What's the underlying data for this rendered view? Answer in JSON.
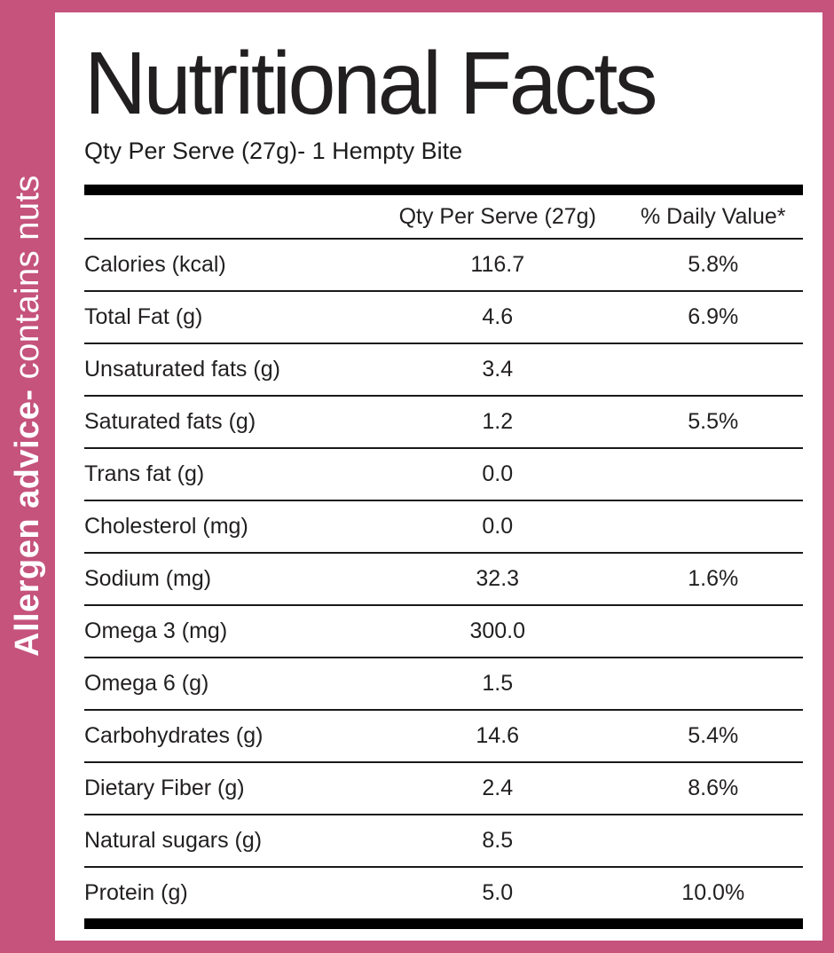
{
  "colors": {
    "accent_pink": "#c5537c",
    "text_dark": "#221f20",
    "bar_black": "#000000",
    "banner_text": "#ffffff"
  },
  "allergen_banner": {
    "bold_text": "Allergen advice-",
    "regular_text": " contains nuts"
  },
  "header": {
    "title": "Nutritional Facts",
    "subtitle": "Qty Per Serve (27g)- 1 Hempty Bite"
  },
  "table": {
    "columns": {
      "qty_header": "Qty Per Serve (27g)",
      "dv_header": "% Daily Value*"
    },
    "rows": [
      {
        "label": "Calories (kcal)",
        "qty": "116.7",
        "dv": "5.8%"
      },
      {
        "label": "Total Fat (g)",
        "qty": "4.6",
        "dv": "6.9%"
      },
      {
        "label": "Unsaturated fats (g)",
        "qty": "3.4",
        "dv": ""
      },
      {
        "label": "Saturated fats (g)",
        "qty": "1.2",
        "dv": "5.5%"
      },
      {
        "label": "Trans fat (g)",
        "qty": "0.0",
        "dv": ""
      },
      {
        "label": "Cholesterol (mg)",
        "qty": "0.0",
        "dv": ""
      },
      {
        "label": "Sodium (mg)",
        "qty": "32.3",
        "dv": "1.6%"
      },
      {
        "label": "Omega 3 (mg)",
        "qty": "300.0",
        "dv": ""
      },
      {
        "label": "Omega 6 (g)",
        "qty": "1.5",
        "dv": ""
      },
      {
        "label": "Carbohydrates (g)",
        "qty": "14.6",
        "dv": "5.4%"
      },
      {
        "label": "Dietary Fiber (g)",
        "qty": "2.4",
        "dv": "8.6%"
      },
      {
        "label": "Natural sugars (g)",
        "qty": "8.5",
        "dv": ""
      },
      {
        "label": "Protein (g)",
        "qty": "5.0",
        "dv": "10.0%"
      }
    ]
  }
}
